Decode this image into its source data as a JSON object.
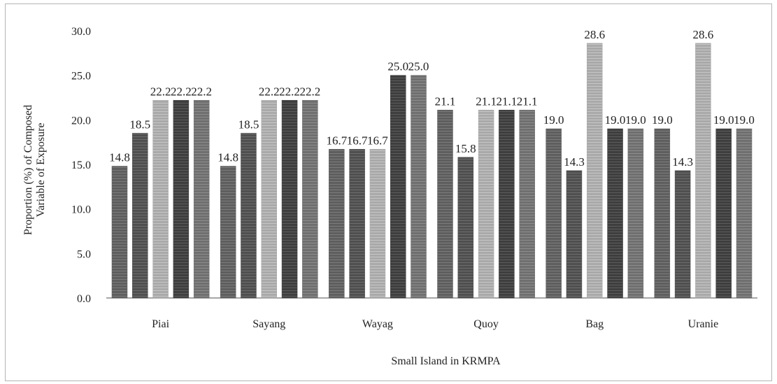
{
  "chart_data": {
    "type": "bar",
    "xlabel": "Small Island in KRMPA",
    "ylabel_lines": [
      "Proportion (%) of Composed",
      "Variable of Exposure"
    ],
    "ylim": [
      0,
      30
    ],
    "yticks": [
      "0.0",
      "5.0",
      "10.0",
      "15.0",
      "20.0",
      "25.0",
      "30.0"
    ],
    "categories": [
      "Piai",
      "Sayang",
      "Wayag",
      "Quoy",
      "Bag",
      "Uranie"
    ],
    "values": [
      [
        14.8,
        18.5,
        22.2,
        22.2,
        22.2
      ],
      [
        14.8,
        18.5,
        22.2,
        22.2,
        22.2
      ],
      [
        16.7,
        16.7,
        16.7,
        25.0,
        25.0
      ],
      [
        21.1,
        15.8,
        21.1,
        21.1,
        21.1
      ],
      [
        19.0,
        14.3,
        28.6,
        19.0,
        19.0
      ],
      [
        19.0,
        14.3,
        28.6,
        19.0,
        19.0
      ]
    ],
    "data_labels": [
      [
        "14.8",
        "18.5",
        "22.2",
        "22.2",
        "22.2"
      ],
      [
        "14.8",
        "18.5",
        "22.2",
        "22.2",
        "22.2"
      ],
      [
        "16.7",
        "16.7",
        "16.7",
        "25.0",
        "25.0"
      ],
      [
        "21.1",
        "15.8",
        "21.1",
        "21.1",
        "21.1"
      ],
      [
        "19.0",
        "14.3",
        "28.6",
        "19.0",
        "19.0"
      ],
      [
        "19.0",
        "14.3",
        "28.6",
        "19.0",
        "19.0"
      ]
    ],
    "bar_colors": [
      "#5e5e5e",
      "#4f4f4f",
      "#a9a9a9",
      "#3e3e3e",
      "#6f6f6f"
    ],
    "grid": false,
    "legend": "none"
  }
}
